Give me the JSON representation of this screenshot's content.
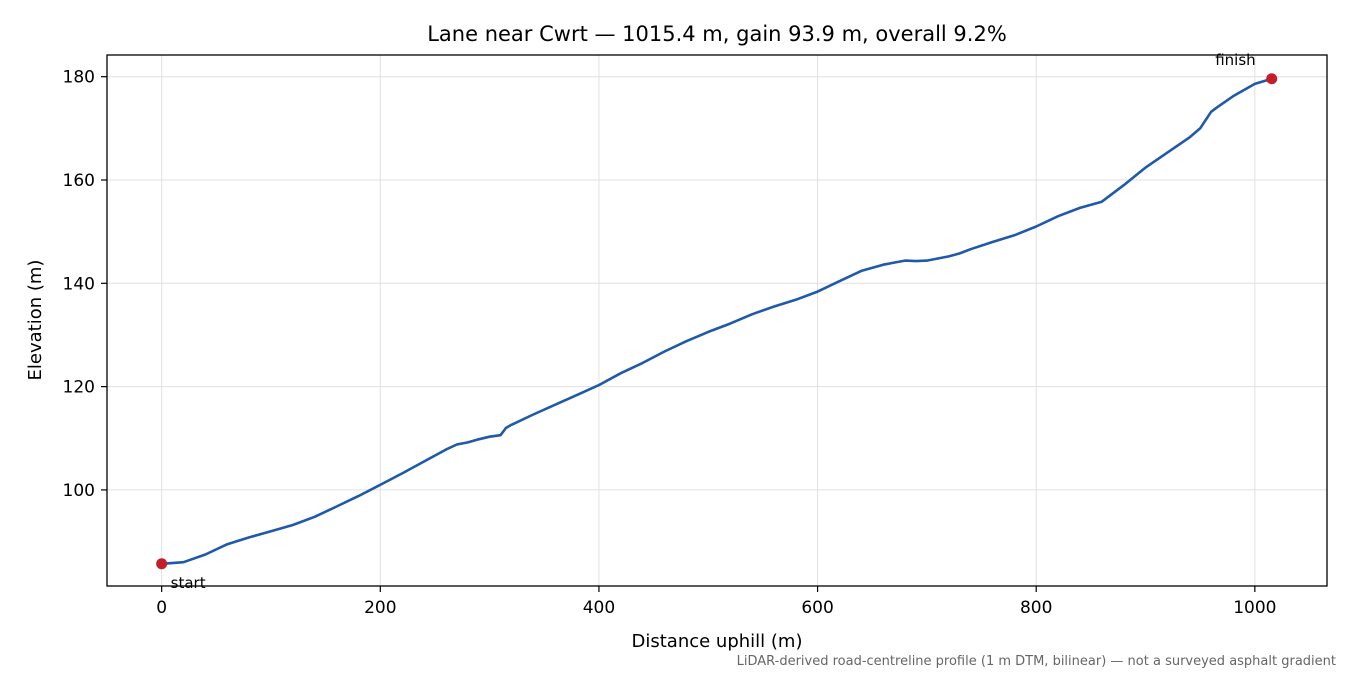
{
  "chart_data": {
    "type": "line",
    "title": "Lane near Cwrt — 1015.4 m, gain 93.9 m, overall 9.2%",
    "xlabel": "Distance uphill (m)",
    "ylabel": "Elevation (m)",
    "xlim": [
      -50,
      1066
    ],
    "ylim": [
      81.4,
      184.2
    ],
    "xticks": [
      0,
      200,
      400,
      600,
      800,
      1000
    ],
    "yticks": [
      100,
      120,
      140,
      160,
      180
    ],
    "grid": true,
    "series": [
      {
        "x": [
          0,
          20,
          40,
          60,
          80,
          100,
          120,
          140,
          160,
          180,
          200,
          220,
          240,
          260,
          270,
          280,
          290,
          300,
          310,
          315,
          320,
          340,
          360,
          380,
          400,
          420,
          440,
          460,
          480,
          500,
          520,
          540,
          560,
          580,
          600,
          620,
          640,
          660,
          680,
          690,
          700,
          710,
          720,
          730,
          740,
          760,
          780,
          800,
          820,
          840,
          860,
          880,
          900,
          920,
          940,
          950,
          960,
          965,
          980,
          1000,
          1015.4
        ],
        "y": [
          85.7,
          86.0,
          87.5,
          89.5,
          90.8,
          92.0,
          93.2,
          94.8,
          96.8,
          98.8,
          101.0,
          103.2,
          105.5,
          107.8,
          108.8,
          109.2,
          109.8,
          110.3,
          110.6,
          112.0,
          112.6,
          114.6,
          116.5,
          118.4,
          120.3,
          122.6,
          124.6,
          126.8,
          128.8,
          130.6,
          132.2,
          134.0,
          135.5,
          136.8,
          138.4,
          140.4,
          142.4,
          143.6,
          144.4,
          144.3,
          144.4,
          144.8,
          145.2,
          145.8,
          146.6,
          148.0,
          149.3,
          151.0,
          153.0,
          154.6,
          155.8,
          159.0,
          162.4,
          165.3,
          168.2,
          170.0,
          173.2,
          174.0,
          176.2,
          178.6,
          179.6
        ]
      }
    ],
    "annotations": [
      {
        "text": "start",
        "x": 0,
        "y": 85.7
      },
      {
        "text": "finish",
        "x": 1015.4,
        "y": 179.6
      }
    ],
    "footnote": "LiDAR-derived road-centreline profile (1 m DTM, bilinear) — not a surveyed asphalt gradient",
    "colors": {
      "line": "#1f5aaa",
      "marker": "#c41e2a",
      "grid": "#e0e0e0"
    }
  }
}
